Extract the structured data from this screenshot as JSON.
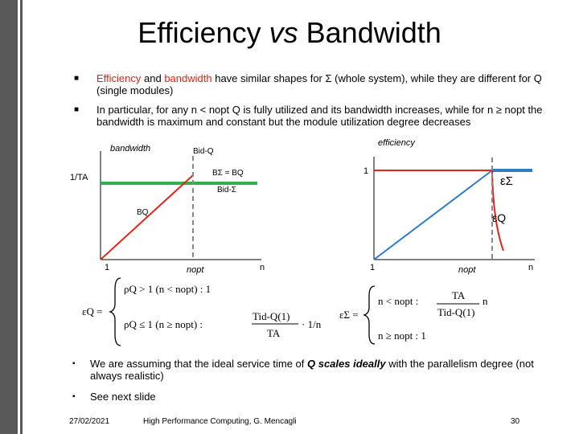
{
  "title": {
    "part1": "Efficiency ",
    "part2": "vs",
    "part3": " Bandwidth"
  },
  "bullets_top": [
    {
      "red1": "Efficiency",
      "mid1": " and ",
      "red2": "bandwidth",
      "rest": " have similar shapes for Σ (whole system), while they are different for Q (single modules)"
    },
    {
      "text": "In particular, for any n < nopt Q is fully utilized and its bandwidth increases, while for n ≥ nopt the bandwidth is maximum and constant but the module utilization degree decreases"
    }
  ],
  "left_graph": {
    "y_label": "bandwidth",
    "y_tick": "1/TA",
    "x_tick_1": "1",
    "x_tick_nopt": "nopt",
    "x_label": "n",
    "label_bidq": "Bid-Q",
    "label_bsigma": "BΣ = BQ",
    "label_bidsigma": "Bid-Σ",
    "label_bq": "BQ"
  },
  "right_graph": {
    "y_label": "efficiency",
    "y_tick": "1",
    "x_tick_1": "1",
    "x_tick_nopt": "nopt",
    "x_label": "n",
    "label_esigma": "εΣ",
    "label_eq": "εQ"
  },
  "formulas": {
    "eq_left": "εQ =",
    "eq_left_case1": "ρQ > 1 (n < nopt) : 1",
    "eq_left_case2_cond": "ρQ ≤ 1 (n ≥ nopt) :",
    "eq_left_num": "Tid-Q(1)",
    "eq_left_den": "TA",
    "eq_left_tail": "· 1/n",
    "eq_right": "εΣ =",
    "eq_right_case1_cond": "n < nopt :",
    "eq_right_num": "TA",
    "eq_right_den": "Tid-Q(1)",
    "eq_right_n": "n",
    "eq_right_case2": "n ≥ nopt : 1"
  },
  "bullets_bottom": [
    {
      "pre": "We are assuming that the ideal service time of ",
      "bold": "Q scales ideally",
      "post": " with the parallelism degree (not always realistic)"
    },
    {
      "text": "See next slide"
    }
  ],
  "footer": {
    "date": "27/02/2021",
    "course": "High Performance Computing, G. Mencagli",
    "page": "30"
  },
  "colors": {
    "red": "#e2231a",
    "green": "#2eb24a",
    "blue": "#2f7bc4",
    "accent": "#595959"
  }
}
